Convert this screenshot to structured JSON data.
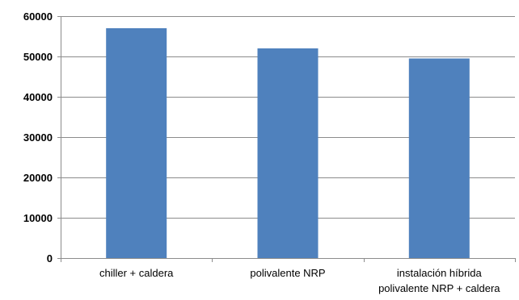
{
  "chart_data": {
    "type": "bar",
    "categories": [
      [
        "chiller + caldera"
      ],
      [
        "polivalente NRP"
      ],
      [
        "instalación híbrida",
        "polivalente NRP + caldera"
      ]
    ],
    "values": [
      57000,
      52000,
      49500
    ],
    "title": "",
    "xlabel": "",
    "ylabel": "",
    "ylim": [
      0,
      60000
    ],
    "yticks": [
      0,
      10000,
      20000,
      30000,
      40000,
      50000,
      60000
    ],
    "ytick_labels": [
      "0",
      "10000",
      "20000",
      "30000",
      "40000",
      "50000",
      "60000"
    ],
    "grid": true,
    "legend": "none",
    "bar_color": "#4f81bd",
    "grid_color": "#8c8c8c"
  }
}
